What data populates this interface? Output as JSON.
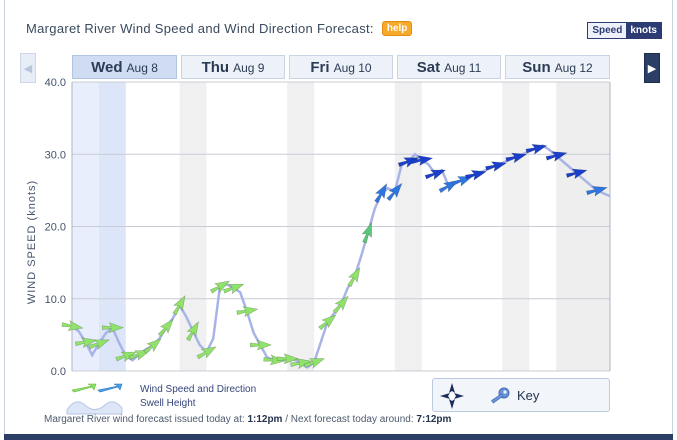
{
  "header": {
    "title": "Margaret River Wind Speed and Wind Direction Forecast:",
    "help_label": "help",
    "units_label": "Speed",
    "units_value": "knots"
  },
  "nav": {
    "days": [
      {
        "name": "Wed",
        "date": "Aug 8",
        "active": true
      },
      {
        "name": "Thu",
        "date": "Aug 9",
        "active": false
      },
      {
        "name": "Fri",
        "date": "Aug 10",
        "active": false
      },
      {
        "name": "Sat",
        "date": "Aug 11",
        "active": false
      },
      {
        "name": "Sun",
        "date": "Aug 12",
        "active": false
      }
    ]
  },
  "chart_data": {
    "type": "line",
    "title": "",
    "xlabel": "",
    "ylabel": "WIND SPEED (knots)",
    "ylim": [
      0,
      40
    ],
    "yticks": [
      "0.0",
      "10.0",
      "20.0",
      "30.0",
      "40.0"
    ],
    "grid": true,
    "series": [
      {
        "name": "Wind Speed and Direction",
        "x": [
          0,
          0.25,
          0.5,
          0.75,
          1,
          1.25,
          1.5,
          1.75,
          2,
          2.25,
          2.5,
          2.75,
          3,
          3.25,
          3.5,
          3.75,
          4,
          4.25,
          4.5,
          4.75,
          5,
          5.25,
          5.5,
          5.75,
          6,
          6.25,
          6.5,
          6.75,
          7,
          7.25,
          7.5,
          7.75,
          8,
          8.25,
          8.5,
          8.75,
          9,
          9.25,
          9.5,
          9.75,
          10,
          10.25,
          10.5,
          10.75,
          11,
          11.25,
          11.5,
          11.75,
          12,
          12.25,
          12.5,
          12.75,
          13,
          13.25,
          13.5,
          13.75,
          14,
          14.25,
          14.5,
          14.75,
          15,
          15.25,
          15.5,
          15.75,
          16,
          16.25,
          16.5,
          16.75,
          17,
          17.25,
          17.5,
          17.75,
          18,
          18.25,
          18.5,
          18.75,
          19,
          19.25,
          19.5,
          19.75,
          20
        ],
        "values": [
          6.2,
          5.5,
          4.0,
          2.2,
          3.8,
          5.2,
          6.0,
          3.9,
          2.1,
          1.5,
          2.3,
          3.0,
          3.5,
          4.5,
          6.0,
          7.3,
          9.1,
          7.5,
          5.5,
          3.6,
          2.6,
          4.5,
          11.7,
          12.0,
          11.5,
          10.9,
          8.3,
          5.3,
          3.6,
          1.9,
          1.5,
          1.4,
          1.7,
          1.6,
          1.1,
          0.5,
          1.2,
          4.0,
          6.8,
          8.0,
          9.2,
          11.5,
          13.0,
          15.9,
          19.1,
          22.4,
          24.6,
          25.3,
          24.8,
          28.5,
          29.0,
          30.0,
          29.2,
          28.6,
          27.3,
          27.8,
          25.6,
          26.0,
          26.4,
          26.8,
          27.2,
          27.6,
          28.0,
          28.4,
          28.8,
          29.2,
          29.6,
          30.0,
          30.4,
          30.8,
          31.2,
          30.6,
          29.8,
          29.0,
          28.2,
          27.4,
          26.6,
          25.8,
          25.0,
          24.6,
          24.2
        ],
        "direction_deg": [
          280,
          280,
          260,
          270,
          250,
          265,
          270,
          260,
          250,
          255,
          250,
          245,
          230,
          230,
          220,
          210,
          210,
          205,
          210,
          220,
          240,
          235,
          240,
          235,
          250,
          250,
          260,
          265,
          270,
          270,
          275,
          280,
          270,
          265,
          260,
          255,
          250,
          240,
          230,
          225,
          220,
          215,
          210,
          205,
          200,
          200,
          210,
          215,
          220,
          245,
          250,
          255,
          260,
          255,
          250,
          245,
          240,
          245,
          250,
          255,
          255,
          255,
          255,
          255,
          255,
          255,
          255,
          255,
          255,
          255,
          255,
          255,
          255,
          255,
          255,
          255,
          255,
          255,
          255,
          255,
          255
        ]
      }
    ]
  },
  "legend": {
    "speed_label": "Wind Speed and Direction",
    "swell_label": "Swell Height"
  },
  "key": {
    "label": "Key",
    "compass_letter": "N"
  },
  "footer": {
    "text1": "Margaret River wind forecast issued today at:",
    "time1": "1:12pm",
    "text2": "/ Next forecast today around:",
    "time2": "7:12pm"
  },
  "colors": {
    "arrow_low": "#8fe26a",
    "arrow_mid": "#4ec0e0",
    "arrow_high": "#1a3fcc",
    "line": "#a8b4e6",
    "accent": "#2a3e66"
  }
}
